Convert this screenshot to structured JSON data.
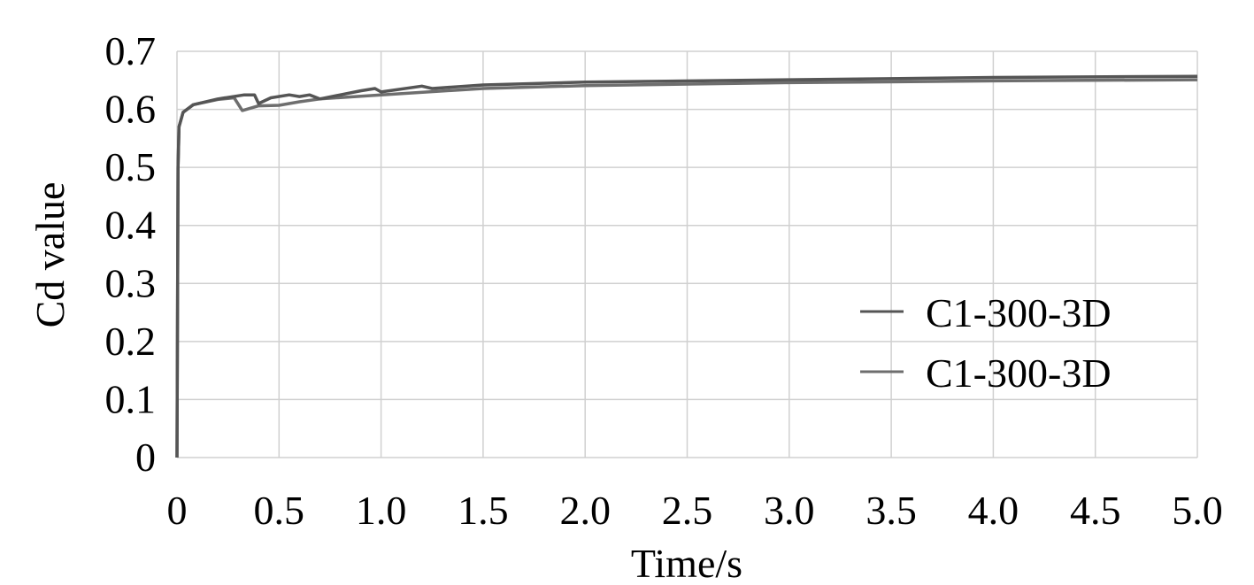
{
  "chart_data": {
    "type": "line",
    "title": "",
    "xlabel": "Time/s",
    "ylabel": "Cd value",
    "xlim": [
      0,
      5.0
    ],
    "ylim": [
      0,
      0.7
    ],
    "grid": true,
    "legend_position": "right-middle",
    "xticks": [
      "0",
      "0.5",
      "1.0",
      "1.5",
      "2.0",
      "2.5",
      "3.0",
      "3.5",
      "4.0",
      "4.5",
      "5.0"
    ],
    "yticks": [
      "0",
      "0.1",
      "0.2",
      "0.3",
      "0.4",
      "0.5",
      "0.6",
      "0.7"
    ],
    "series": [
      {
        "name": "C1-300-3D",
        "color": "#555555",
        "x": [
          0,
          0.005,
          0.01,
          0.03,
          0.08,
          0.2,
          0.33,
          0.38,
          0.4,
          0.46,
          0.55,
          0.6,
          0.65,
          0.7,
          0.8,
          0.9,
          0.97,
          1.0,
          1.2,
          1.25,
          1.5,
          2.0,
          3.0,
          4.0,
          5.0
        ],
        "y": [
          0,
          0.5,
          0.57,
          0.595,
          0.608,
          0.618,
          0.625,
          0.625,
          0.61,
          0.62,
          0.625,
          0.622,
          0.625,
          0.618,
          0.625,
          0.632,
          0.636,
          0.63,
          0.64,
          0.636,
          0.642,
          0.647,
          0.651,
          0.655,
          0.657
        ]
      },
      {
        "name": "C1-300-3D",
        "color": "#6e6e6e",
        "x": [
          0,
          0.005,
          0.01,
          0.03,
          0.08,
          0.2,
          0.28,
          0.32,
          0.4,
          0.5,
          0.6,
          0.7,
          1.0,
          1.5,
          2.0,
          3.0,
          4.0,
          5.0
        ],
        "y": [
          0,
          0.5,
          0.57,
          0.595,
          0.608,
          0.617,
          0.62,
          0.598,
          0.606,
          0.607,
          0.613,
          0.618,
          0.625,
          0.636,
          0.641,
          0.646,
          0.649,
          0.651
        ]
      }
    ]
  }
}
